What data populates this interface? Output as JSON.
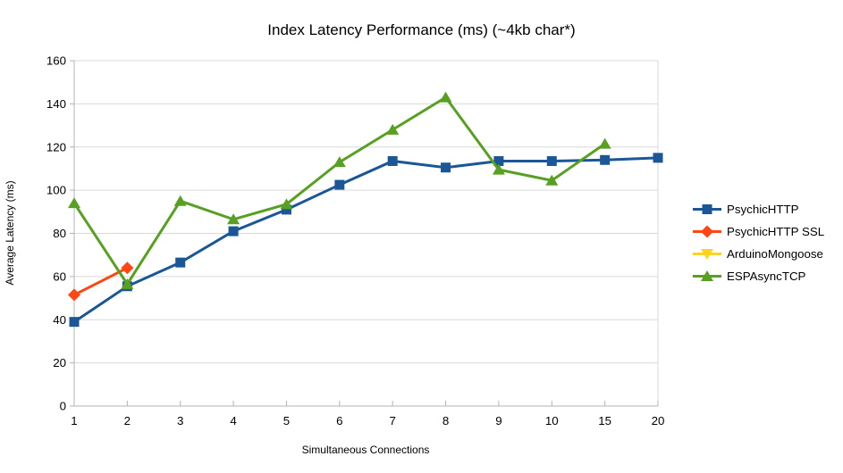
{
  "chart_data": {
    "type": "line",
    "title": "Index Latency Performance (ms) (~4kb char*)",
    "xlabel": "Simultaneous Connections",
    "ylabel": "Average Latency (ms)",
    "categories": [
      "1",
      "2",
      "3",
      "4",
      "5",
      "6",
      "7",
      "8",
      "9",
      "10",
      "15",
      "20"
    ],
    "ylim": [
      0,
      160
    ],
    "ytick_step": 20,
    "grid": "horizontal",
    "legend_position": "right",
    "colors": {
      "gridline": "#d9d9d9",
      "axis": "#b3b3b3",
      "text": "#000000"
    },
    "series": [
      {
        "name": "PsychicHTTP",
        "color": "#1b5796",
        "marker": "square",
        "values": [
          39,
          55.5,
          66.5,
          81,
          91,
          102.5,
          113.5,
          110.5,
          113.5,
          113.5,
          114,
          115
        ]
      },
      {
        "name": "PsychicHTTP SSL",
        "color": "#ff4613",
        "marker": "diamond",
        "values": [
          51.5,
          64,
          null,
          null,
          null,
          null,
          null,
          null,
          null,
          null,
          null,
          null
        ]
      },
      {
        "name": "ArduinoMongoose",
        "color": "#ffd320",
        "marker": "triangle-down",
        "values": [
          null,
          null,
          null,
          null,
          null,
          null,
          null,
          null,
          null,
          null,
          null,
          null
        ]
      },
      {
        "name": "ESPAsyncTCP",
        "color": "#57a021",
        "marker": "triangle-up",
        "values": [
          94,
          56.5,
          95,
          86.5,
          93.5,
          113,
          128,
          143,
          109.5,
          104.5,
          121.5,
          null
        ]
      }
    ]
  }
}
